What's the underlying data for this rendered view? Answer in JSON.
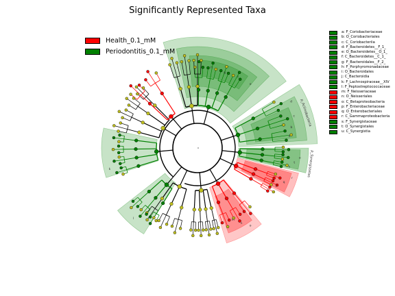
{
  "title": "Significantly Represented Taxa",
  "colors": {
    "health": "#ff0000",
    "periodontitis": "#008000",
    "neutral_node": "#bfbf1f",
    "health_shade": "#ff6b6b",
    "periodontitis_shade": "#3a9a3a"
  },
  "legend": [
    {
      "label": "Health_0.1_mM",
      "color": "#ff0000"
    },
    {
      "label": "Periodontitis_0.1_mM",
      "color": "#008000"
    }
  ],
  "taxa_key": [
    {
      "text": "a: F_Coriobacteriaceae",
      "class": "Periodontitis_0.1_mM"
    },
    {
      "text": "b: O_Coriobacteriales",
      "class": "Periodontitis_0.1_mM"
    },
    {
      "text": "c: C_Coriobacteriia",
      "class": "Periodontitis_0.1_mM"
    },
    {
      "text": "d: F_Bacteroidetes__F_1_",
      "class": "Periodontitis_0.1_mM"
    },
    {
      "text": "e: O_Bacteroidetes__O_1_",
      "class": "Periodontitis_0.1_mM"
    },
    {
      "text": "f: C_Bacteroidetes__C_1_",
      "class": "Periodontitis_0.1_mM"
    },
    {
      "text": "g: F_Bacteroidales__F_2_",
      "class": "Periodontitis_0.1_mM"
    },
    {
      "text": "h: F_Porphyromonadaceae",
      "class": "Periodontitis_0.1_mM"
    },
    {
      "text": "i: O_Bacteroidales",
      "class": "Periodontitis_0.1_mM"
    },
    {
      "text": "j: C_Bacteroidia",
      "class": "Periodontitis_0.1_mM"
    },
    {
      "text": "k: F_Lachnospiraceae__XIV",
      "class": "Periodontitis_0.1_mM"
    },
    {
      "text": "l: F_Peptostreptococcaceae",
      "class": "Periodontitis_0.1_mM"
    },
    {
      "text": "m: F_Neisseriaceae",
      "class": "Health_0.1_mM"
    },
    {
      "text": "n: O_Neisseriales",
      "class": "Health_0.1_mM"
    },
    {
      "text": "o: C_Betaproteobacteria",
      "class": "Health_0.1_mM"
    },
    {
      "text": "p: F_Enterobacteriaceae",
      "class": "Health_0.1_mM"
    },
    {
      "text": "q: O_Enterobacteriales",
      "class": "Health_0.1_mM"
    },
    {
      "text": "r: C_Gammaproteobacteria",
      "class": "Health_0.1_mM"
    },
    {
      "text": "s: F_Synergistaceae",
      "class": "Periodontitis_0.1_mM"
    },
    {
      "text": "t: O_Synergistales",
      "class": "Periodontitis_0.1_mM"
    },
    {
      "text": "u: C_Synergistia",
      "class": "Periodontitis_0.1_mM"
    }
  ],
  "clade_labels": {
    "actinobacteria": "p_Actinobacteria",
    "synergistetes": "p_Synergistetes"
  }
}
